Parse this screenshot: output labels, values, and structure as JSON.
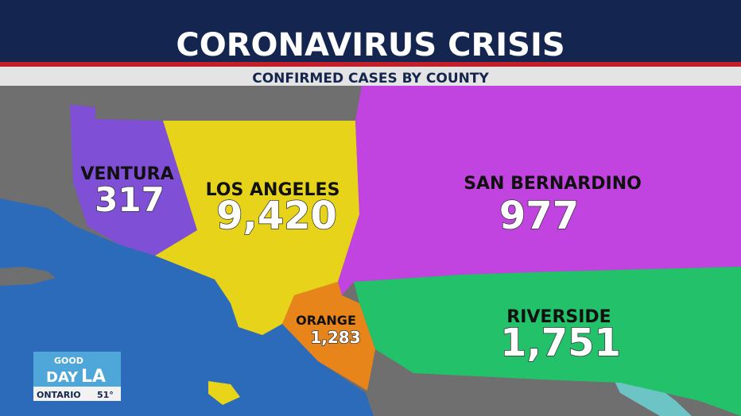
{
  "header": {
    "title": "CORONAVIRUS CRISIS",
    "subtitle": "CONFIRMED CASES BY COUNTY"
  },
  "counties": [
    {
      "name": "VENTURA",
      "cases": "317"
    },
    {
      "name": "LOS ANGELES",
      "cases": "9,420"
    },
    {
      "name": "SAN BERNARDINO",
      "cases": "977"
    },
    {
      "name": "ORANGE",
      "cases": "1,283"
    },
    {
      "name": "RIVERSIDE",
      "cases": "1,751"
    }
  ],
  "logo": {
    "line1": "GOOD",
    "line2": "DAY",
    "line3": "LA",
    "city": "ONTARIO",
    "temperature": "51°"
  }
}
